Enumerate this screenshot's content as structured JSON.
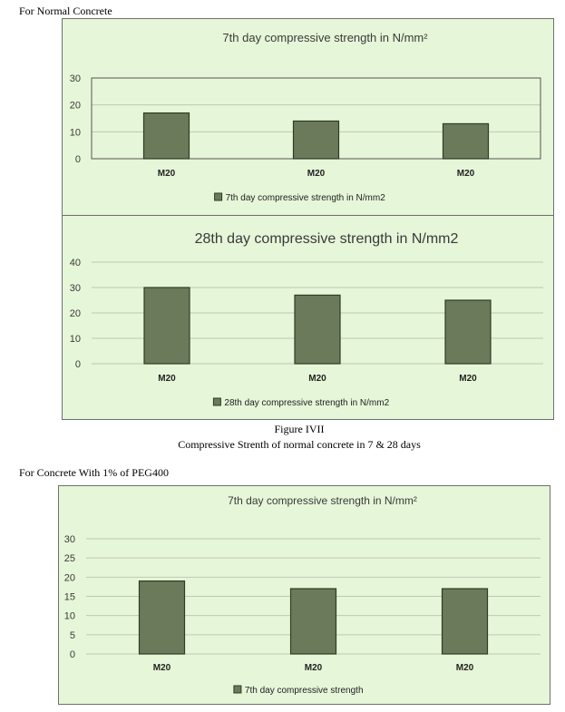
{
  "sections": {
    "normal_label": "For Normal Concrete",
    "peg_label": "For Concrete With 1% of PEG400"
  },
  "figure": {
    "caption_title": "Figure IVII",
    "caption_text": "Compressive Strenth of normal concrete in 7 & 28 days"
  },
  "colors": {
    "bar": "#6b7a5a",
    "bar_stroke": "#2f3d24",
    "panel_bg": "#e6f6d8",
    "grid": "#bfc8b4"
  },
  "chart_data": [
    {
      "type": "bar",
      "title": "7th day compressive strength in N/mm²",
      "categories": [
        "M20",
        "M20",
        "M20"
      ],
      "series": [
        {
          "name": "7th day compressive strength in N/mm2",
          "values": [
            17,
            14,
            13
          ]
        }
      ],
      "yticks": [
        0,
        10,
        20,
        30
      ],
      "ylim": [
        0,
        30
      ],
      "grid": true,
      "legend": "bottom"
    },
    {
      "type": "bar",
      "title": "28th day compressive strength in N/mm2",
      "categories": [
        "M20",
        "M20",
        "M20"
      ],
      "series": [
        {
          "name": "28th day compressive strength in N/mm2",
          "values": [
            30,
            27,
            25
          ]
        }
      ],
      "yticks": [
        0,
        10,
        20,
        30,
        40
      ],
      "ylim": [
        0,
        40
      ],
      "grid": true,
      "legend": "bottom"
    },
    {
      "type": "bar",
      "title": "7th day compressive strength in N/mm²",
      "categories": [
        "M20",
        "M20",
        "M20"
      ],
      "series": [
        {
          "name": "7th day compressive strength",
          "values": [
            19,
            17,
            17
          ]
        }
      ],
      "yticks": [
        0,
        5,
        10,
        15,
        20,
        25,
        30
      ],
      "ylim": [
        0,
        30
      ],
      "grid": true,
      "legend": "bottom"
    }
  ]
}
